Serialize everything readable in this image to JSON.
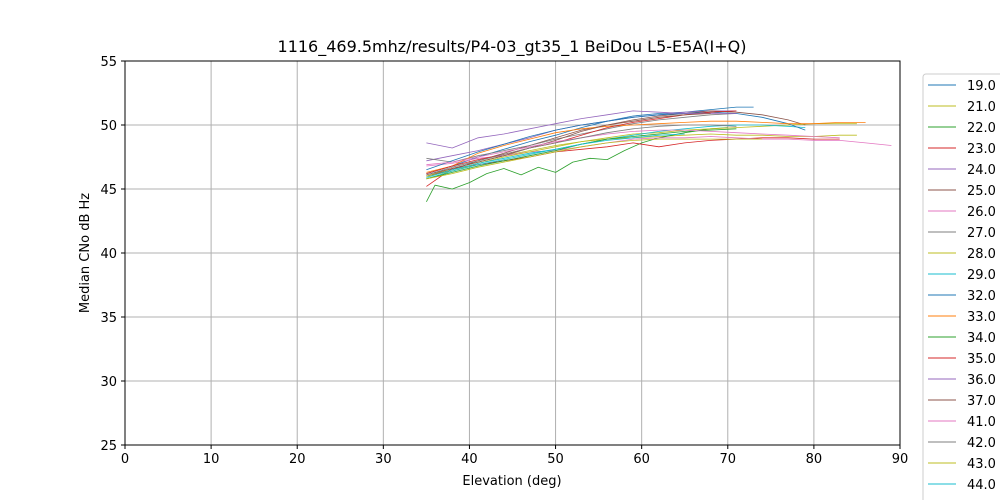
{
  "chart_data": {
    "type": "line",
    "title": "1116_469.5mhz/results/P4-03_gt35_1 BeiDou L5-E5A(I+Q)",
    "xlabel": "Elevation (deg)",
    "ylabel": "Median CNo dB Hz",
    "xlim": [
      0,
      90
    ],
    "ylim": [
      25,
      55
    ],
    "xticks": [
      0,
      10,
      20,
      30,
      40,
      50,
      60,
      70,
      80,
      90
    ],
    "yticks": [
      25,
      30,
      35,
      40,
      45,
      50,
      55
    ],
    "grid": true,
    "legend_placement": "right, outside plot (clipped)",
    "series": [
      {
        "name": "19.0",
        "color": "#1f77b4",
        "x": [
          35,
          38,
          41,
          44,
          47,
          50,
          53,
          56,
          59,
          62,
          65,
          68,
          71,
          73
        ],
        "y": [
          46.2,
          46.8,
          47.5,
          48.1,
          48.7,
          49.2,
          49.8,
          50.3,
          50.7,
          50.9,
          51.0,
          51.2,
          51.4,
          51.4
        ]
      },
      {
        "name": "21.0",
        "color": "#bcbd22",
        "x": [
          35,
          38,
          41,
          44,
          47,
          50,
          53,
          56,
          59,
          62,
          65,
          68,
          71,
          74,
          77,
          80,
          83,
          85
        ],
        "y": [
          46.0,
          46.6,
          47.1,
          47.6,
          48.0,
          48.4,
          48.7,
          48.9,
          49.0,
          49.1,
          49.2,
          49.3,
          49.2,
          49.2,
          49.1,
          49.1,
          49.2,
          49.2
        ]
      },
      {
        "name": "22.0",
        "color": "#2ca02c",
        "x": [
          35,
          36,
          38,
          40,
          42,
          44,
          46,
          48,
          50,
          52,
          54,
          56,
          58,
          60,
          62,
          65,
          68,
          70
        ],
        "y": [
          44.0,
          45.3,
          45.0,
          45.5,
          46.2,
          46.6,
          46.1,
          46.7,
          46.3,
          47.1,
          47.4,
          47.3,
          48.0,
          48.6,
          49.0,
          49.4,
          49.7,
          49.8
        ]
      },
      {
        "name": "23.0",
        "color": "#d62728",
        "x": [
          35,
          38,
          41,
          44,
          47,
          50,
          53,
          56,
          59,
          62,
          65,
          68,
          71,
          74,
          77,
          80,
          83
        ],
        "y": [
          45.2,
          46.6,
          46.9,
          47.2,
          47.5,
          47.9,
          48.1,
          48.3,
          48.6,
          48.3,
          48.6,
          48.8,
          48.9,
          49.0,
          49.0,
          48.9,
          48.9
        ]
      },
      {
        "name": "24.0",
        "color": "#9467bd",
        "x": [
          35,
          38,
          41,
          44,
          47,
          50,
          53,
          56,
          59,
          62,
          65,
          68,
          71
        ],
        "y": [
          47.2,
          47.6,
          48.0,
          48.5,
          49.0,
          49.6,
          50.0,
          50.3,
          50.6,
          50.8,
          51.0,
          51.1,
          51.1
        ]
      },
      {
        "name": "25.0",
        "color": "#8c564b",
        "x": [
          35,
          38,
          41,
          44,
          47,
          50,
          53,
          56,
          59,
          62,
          65,
          68,
          71,
          74,
          77,
          79
        ],
        "y": [
          46.0,
          46.5,
          47.2,
          47.8,
          48.4,
          49.0,
          49.6,
          50.0,
          50.4,
          50.7,
          50.9,
          51.1,
          51.0,
          50.8,
          50.4,
          50.0
        ]
      },
      {
        "name": "26.0",
        "color": "#e377c2",
        "x": [
          35,
          38,
          41,
          44,
          47,
          50,
          53,
          56,
          59,
          62,
          65,
          68,
          71,
          74,
          77,
          80,
          83,
          86,
          89
        ],
        "y": [
          46.8,
          47.0,
          47.4,
          47.6,
          47.9,
          48.0,
          48.3,
          48.6,
          48.9,
          49.0,
          49.0,
          49.1,
          49.0,
          48.9,
          48.9,
          48.8,
          48.8,
          48.6,
          48.4
        ]
      },
      {
        "name": "27.0",
        "color": "#7f7f7f",
        "x": [
          35,
          38,
          41,
          44,
          47,
          50,
          53,
          56,
          59,
          62,
          65,
          68,
          71
        ],
        "y": [
          47.4,
          47.1,
          47.6,
          48.0,
          48.4,
          48.9,
          49.3,
          49.7,
          50.1,
          50.4,
          50.6,
          50.8,
          50.9
        ]
      },
      {
        "name": "28.0",
        "color": "#bcbd22",
        "x": [
          35,
          38,
          41,
          44,
          47,
          50,
          53,
          56,
          59,
          62,
          65,
          68,
          71,
          74,
          77,
          80,
          83,
          85
        ],
        "y": [
          46.0,
          46.4,
          47.0,
          47.5,
          47.9,
          48.3,
          48.7,
          49.0,
          49.3,
          49.4,
          49.6,
          49.7,
          49.8,
          49.9,
          50.0,
          50.1,
          50.1,
          50.1
        ]
      },
      {
        "name": "29.0",
        "color": "#17becf",
        "x": [
          35,
          38,
          41,
          44,
          47,
          50,
          53,
          56,
          59,
          62,
          65,
          68,
          71,
          74,
          77,
          79
        ],
        "y": [
          45.8,
          46.4,
          46.9,
          47.3,
          47.7,
          48.1,
          48.5,
          48.9,
          49.2,
          49.5,
          49.7,
          49.9,
          50.0,
          50.0,
          49.9,
          49.8
        ]
      },
      {
        "name": "32.0",
        "color": "#1f77b4",
        "x": [
          35,
          38,
          41,
          44,
          47,
          50,
          53,
          56,
          59,
          62,
          65,
          68,
          71,
          74,
          77,
          79
        ],
        "y": [
          46.5,
          47.2,
          47.9,
          48.5,
          49.1,
          49.6,
          50.0,
          50.3,
          50.6,
          50.8,
          50.9,
          51.0,
          50.9,
          50.6,
          50.1,
          49.6
        ]
      },
      {
        "name": "33.0",
        "color": "#ff7f0e",
        "x": [
          35,
          38,
          41,
          44,
          47,
          50,
          53,
          56,
          59,
          62,
          65,
          68,
          71,
          74,
          77,
          80,
          83,
          86
        ],
        "y": [
          46.3,
          46.8,
          47.8,
          48.4,
          48.9,
          49.4,
          49.7,
          49.9,
          50.0,
          50.1,
          50.2,
          50.3,
          50.3,
          50.2,
          50.1,
          50.1,
          50.2,
          50.2
        ]
      },
      {
        "name": "34.0",
        "color": "#2ca02c",
        "x": [
          35,
          38,
          41,
          44,
          47,
          50,
          53,
          56,
          59,
          62,
          65,
          68,
          71
        ],
        "y": [
          45.8,
          46.3,
          46.8,
          47.2,
          47.6,
          48.0,
          48.5,
          48.9,
          49.1,
          49.3,
          49.5,
          49.6,
          49.7
        ]
      },
      {
        "name": "35.0",
        "color": "#d62728",
        "x": [
          35,
          38,
          41,
          44,
          47,
          50,
          53,
          56,
          59,
          62,
          65,
          68,
          71
        ],
        "y": [
          46.2,
          46.8,
          47.3,
          47.7,
          48.2,
          48.6,
          49.2,
          49.8,
          50.2,
          50.5,
          50.8,
          51.0,
          51.1
        ]
      },
      {
        "name": "36.0",
        "color": "#9467bd",
        "x": [
          35,
          38,
          41,
          44,
          47,
          50,
          53,
          56,
          59,
          62,
          65,
          68,
          71
        ],
        "y": [
          48.6,
          48.2,
          49.0,
          49.3,
          49.7,
          50.1,
          50.5,
          50.8,
          51.1,
          51.0,
          50.9,
          50.9,
          50.9
        ]
      },
      {
        "name": "37.0",
        "color": "#8c564b",
        "x": [
          35,
          38,
          41,
          44,
          47,
          50,
          53,
          56,
          59,
          62,
          65,
          68
        ],
        "y": [
          46.1,
          46.6,
          47.1,
          47.6,
          48.2,
          48.8,
          49.5,
          50.0,
          50.3,
          50.6,
          50.8,
          50.9
        ]
      },
      {
        "name": "41.0",
        "color": "#e377c2",
        "x": [
          35,
          38,
          41,
          44,
          47,
          50,
          53,
          56,
          59,
          62,
          65,
          68,
          71,
          74,
          77,
          80,
          83
        ],
        "y": [
          46.9,
          47.1,
          47.5,
          47.9,
          48.3,
          48.7,
          49.0,
          49.3,
          49.5,
          49.6,
          49.6,
          49.5,
          49.4,
          49.3,
          49.2,
          49.1,
          49.0
        ]
      },
      {
        "name": "42.0",
        "color": "#7f7f7f",
        "x": [
          35,
          38,
          41,
          44,
          47,
          50,
          53,
          56,
          59,
          62,
          65,
          68,
          71
        ],
        "y": [
          46.1,
          46.7,
          47.2,
          47.7,
          48.2,
          48.6,
          49.0,
          49.4,
          49.7,
          49.9,
          50.0,
          50.0,
          49.9
        ]
      },
      {
        "name": "43.0",
        "color": "#bcbd22",
        "x": [
          35,
          38,
          41,
          44,
          47,
          50,
          53,
          56,
          59,
          62,
          65,
          68,
          71,
          74
        ],
        "y": [
          45.8,
          46.2,
          46.7,
          47.1,
          47.5,
          47.9,
          48.3,
          48.6,
          48.8,
          48.9,
          48.9,
          48.9,
          48.9,
          48.9
        ]
      },
      {
        "name": "44.0",
        "color": "#17becf",
        "x": [
          35,
          38,
          41,
          44,
          47,
          50,
          53,
          56,
          59,
          62,
          65
        ],
        "y": [
          45.9,
          46.5,
          47.0,
          47.4,
          47.8,
          48.1,
          48.5,
          48.8,
          49.0,
          49.2,
          49.3
        ]
      }
    ]
  }
}
